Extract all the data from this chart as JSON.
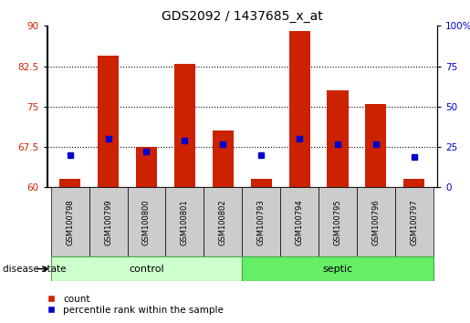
{
  "title": "GDS2092 / 1437685_x_at",
  "samples": [
    "GSM100798",
    "GSM100799",
    "GSM100800",
    "GSM100801",
    "GSM100802",
    "GSM100793",
    "GSM100794",
    "GSM100795",
    "GSM100796",
    "GSM100797"
  ],
  "count_values": [
    61.5,
    84.5,
    67.5,
    83.0,
    70.5,
    61.5,
    89.0,
    78.0,
    75.5,
    61.5
  ],
  "percentile_values": [
    20,
    30,
    22,
    29,
    27,
    20,
    30,
    27,
    27,
    19
  ],
  "count_base": 60,
  "ylim_left": [
    60,
    90
  ],
  "ylim_right": [
    0,
    100
  ],
  "yticks_left": [
    60,
    67.5,
    75,
    82.5,
    90
  ],
  "yticks_right": [
    0,
    25,
    50,
    75,
    100
  ],
  "bar_color": "#cc2200",
  "dot_color": "#0000cc",
  "group_control": [
    0,
    1,
    2,
    3,
    4
  ],
  "group_septic": [
    5,
    6,
    7,
    8,
    9
  ],
  "control_bg_light": "#ccffcc",
  "control_bg_dark": "#55cc55",
  "septic_bg": "#66ee66",
  "sample_box_bg": "#cccccc",
  "xlabel_disease": "disease state",
  "legend_count": "count",
  "legend_percentile": "percentile rank within the sample",
  "title_fontsize": 10,
  "tick_fontsize": 7.5,
  "label_fontsize": 8
}
